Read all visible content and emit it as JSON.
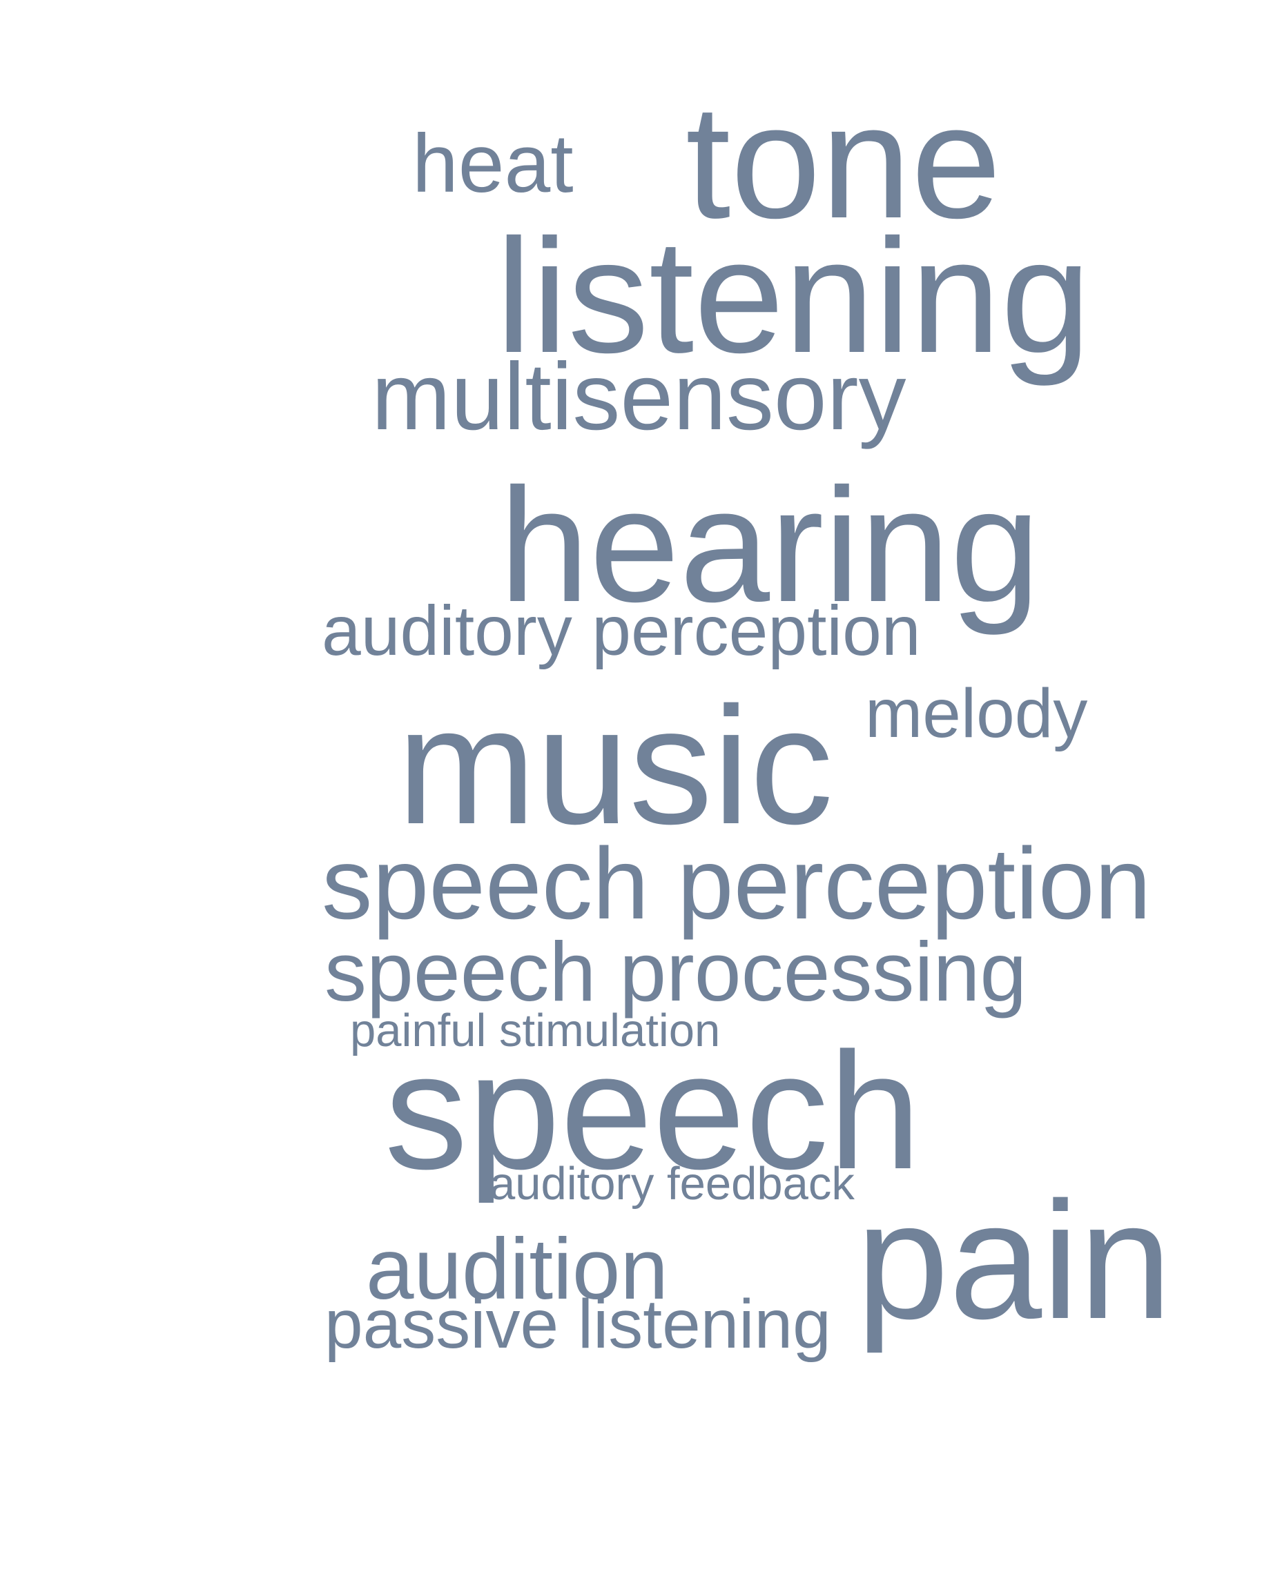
{
  "word_cloud": {
    "text_color": "#718299",
    "background_color": "#ffffff",
    "words": {
      "heat": "heat",
      "tone": "tone",
      "listening": "listening",
      "multisensory": "multisensory",
      "hearing": "hearing",
      "auditory_perception": "auditory perception",
      "melody": "melody",
      "music": "music",
      "speech_perception": "speech perception",
      "speech_processing": "speech processing",
      "painful_stimulation": "painful stimulation",
      "speech": "speech",
      "auditory_feedback": "auditory feedback",
      "pain": "pain",
      "audition": "audition",
      "passive_listening": "passive listening"
    }
  }
}
